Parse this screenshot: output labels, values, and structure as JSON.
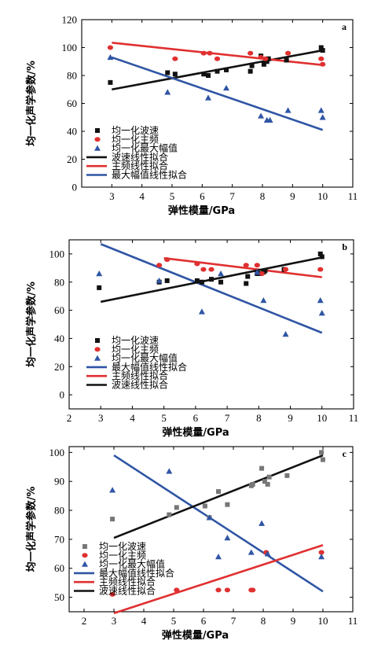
{
  "colors": {
    "wave": "#111111",
    "freq": "#e03030",
    "amp": "#2f55a4",
    "wave_c": "#777777"
  },
  "chart_data": [
    {
      "type": "scatter",
      "panel": "a",
      "xlabel": "弹性模量/GPa",
      "ylabel": "均一化声学参数/%",
      "xlim": [
        2,
        11
      ],
      "ylim": [
        0,
        120
      ],
      "xticks": [
        3,
        4,
        5,
        6,
        7,
        8,
        9,
        10,
        11
      ],
      "yticks": [
        0,
        20,
        40,
        60,
        80,
        100,
        120
      ],
      "legend_position": "bottom-left",
      "points": [
        {
          "name": "均一化波速",
          "marker": "square",
          "color": "wave",
          "x": [
            2.95,
            4.85,
            5.1,
            6.05,
            6.2,
            6.5,
            6.8,
            7.6,
            7.65,
            7.95,
            8.05,
            8.15,
            8.2,
            8.8,
            9.95,
            10.0
          ],
          "y": [
            75,
            82,
            81,
            81,
            80,
            83,
            84,
            83,
            87,
            94,
            88,
            90,
            92,
            91,
            100,
            98
          ]
        },
        {
          "name": "均一化主频",
          "marker": "circle",
          "color": "freq",
          "x": [
            2.95,
            5.1,
            6.05,
            6.25,
            6.5,
            7.6,
            7.95,
            8.1,
            8.85,
            9.95,
            10.0
          ],
          "y": [
            100,
            92,
            96,
            96,
            92,
            96,
            93,
            92,
            96,
            92,
            88
          ]
        },
        {
          "name": "均一化最大幅值",
          "marker": "triangle",
          "color": "amp",
          "x": [
            2.95,
            4.85,
            6.2,
            6.8,
            7.95,
            8.15,
            8.25,
            8.85,
            9.95,
            10.0
          ],
          "y": [
            93,
            68,
            64,
            71,
            51,
            48,
            48,
            55,
            55,
            50
          ]
        }
      ],
      "lines": [
        {
          "name": "波速线性拟合",
          "color": "wave",
          "x": [
            3,
            10
          ],
          "y": [
            70,
            98
          ]
        },
        {
          "name": "主频线性拟合",
          "color": "freq",
          "x": [
            3,
            10
          ],
          "y": [
            103.5,
            87.5
          ]
        },
        {
          "name": "最大幅值线性拟合",
          "color": "amp",
          "x": [
            3,
            10
          ],
          "y": [
            93,
            41
          ]
        }
      ]
    },
    {
      "type": "scatter",
      "panel": "b",
      "xlabel": "弹性模量/GPa",
      "ylabel": "均一化声学参数/%",
      "xlim": [
        2,
        11
      ],
      "ylim": [
        -10,
        110
      ],
      "xticks": [
        2,
        3,
        4,
        5,
        6,
        7,
        8,
        9,
        10,
        11
      ],
      "yticks": [
        0,
        20,
        40,
        60,
        80,
        100
      ],
      "legend_position": "bottom-left",
      "points": [
        {
          "name": "均一化波速",
          "marker": "square",
          "color": "wave",
          "x": [
            2.95,
            4.85,
            5.1,
            6.05,
            6.2,
            6.5,
            6.8,
            7.6,
            7.65,
            7.95,
            8.05,
            8.15,
            8.2,
            8.8,
            9.95,
            10.0
          ],
          "y": [
            76,
            80,
            81,
            81,
            80,
            82,
            80,
            79,
            84,
            86,
            86,
            87,
            88,
            89,
            100,
            98
          ]
        },
        {
          "name": "均一化主频",
          "marker": "circle",
          "color": "freq",
          "x": [
            4.85,
            5.1,
            6.05,
            6.25,
            6.5,
            7.6,
            7.95,
            8.1,
            8.85,
            9.95
          ],
          "y": [
            92,
            96,
            93,
            89,
            89,
            92,
            92,
            86,
            89,
            89
          ]
        },
        {
          "name": "均一化最大幅值",
          "marker": "triangle",
          "color": "amp",
          "x": [
            2.95,
            4.85,
            6.2,
            6.8,
            7.95,
            8.15,
            8.85,
            9.95,
            10.0
          ],
          "y": [
            86,
            81,
            59,
            86,
            87,
            67,
            43,
            67,
            58
          ]
        }
      ],
      "lines": [
        {
          "name": "最大幅值线性拟合",
          "color": "amp",
          "x": [
            3,
            10
          ],
          "y": [
            107,
            44
          ]
        },
        {
          "name": "主频线性拟合",
          "color": "freq",
          "x": [
            5,
            10
          ],
          "y": [
            97,
            83.5
          ]
        },
        {
          "name": "波速线性拟合",
          "color": "wave",
          "x": [
            3,
            10
          ],
          "y": [
            66,
            97.5
          ]
        }
      ]
    },
    {
      "type": "scatter",
      "panel": "c",
      "xlabel": "弹性模量/GPa",
      "ylabel": "均一化声学参数/%",
      "xlim": [
        1.5,
        11
      ],
      "ylim": [
        45,
        102
      ],
      "xticks": [
        2,
        3,
        4,
        5,
        6,
        7,
        8,
        9,
        10,
        11
      ],
      "yticks": [
        50,
        60,
        70,
        80,
        90,
        100
      ],
      "legend_position": "bottom-left",
      "points": [
        {
          "name": "均一化波速",
          "marker": "square",
          "color": "wave_c",
          "x": [
            2.95,
            4.85,
            5.1,
            6.05,
            6.2,
            6.5,
            6.8,
            7.6,
            7.65,
            7.95,
            8.05,
            8.15,
            8.2,
            8.8,
            9.95,
            10.0
          ],
          "y": [
            77,
            78.5,
            81,
            81.5,
            77.5,
            86.5,
            82,
            88.5,
            89,
            94.5,
            90,
            89,
            91.5,
            92,
            100,
            97.5
          ]
        },
        {
          "name": "均一化主频",
          "marker": "circle",
          "color": "freq",
          "x": [
            2.95,
            5.1,
            6.5,
            6.8,
            7.6,
            7.65,
            8.1,
            9.95
          ],
          "y": [
            51,
            52.5,
            52.5,
            52.5,
            52.5,
            52.5,
            65.5,
            65.5
          ]
        },
        {
          "name": "均一化最大幅值",
          "marker": "triangle",
          "color": "amp",
          "x": [
            2.95,
            4.85,
            6.2,
            6.5,
            6.8,
            7.6,
            7.95,
            8.15,
            9.95
          ],
          "y": [
            87,
            93.5,
            77.5,
            64,
            70.5,
            65.5,
            75.5,
            65,
            64
          ]
        }
      ],
      "lines": [
        {
          "name": "最大幅值线性拟合",
          "color": "amp",
          "x": [
            3,
            10
          ],
          "y": [
            99,
            52
          ]
        },
        {
          "name": "主频线性拟合",
          "color": "freq",
          "x": [
            3,
            10
          ],
          "y": [
            44.5,
            68
          ]
        },
        {
          "name": "波速线性拟合",
          "color": "wave",
          "x": [
            3,
            10
          ],
          "y": [
            70.5,
            99
          ]
        }
      ]
    }
  ]
}
